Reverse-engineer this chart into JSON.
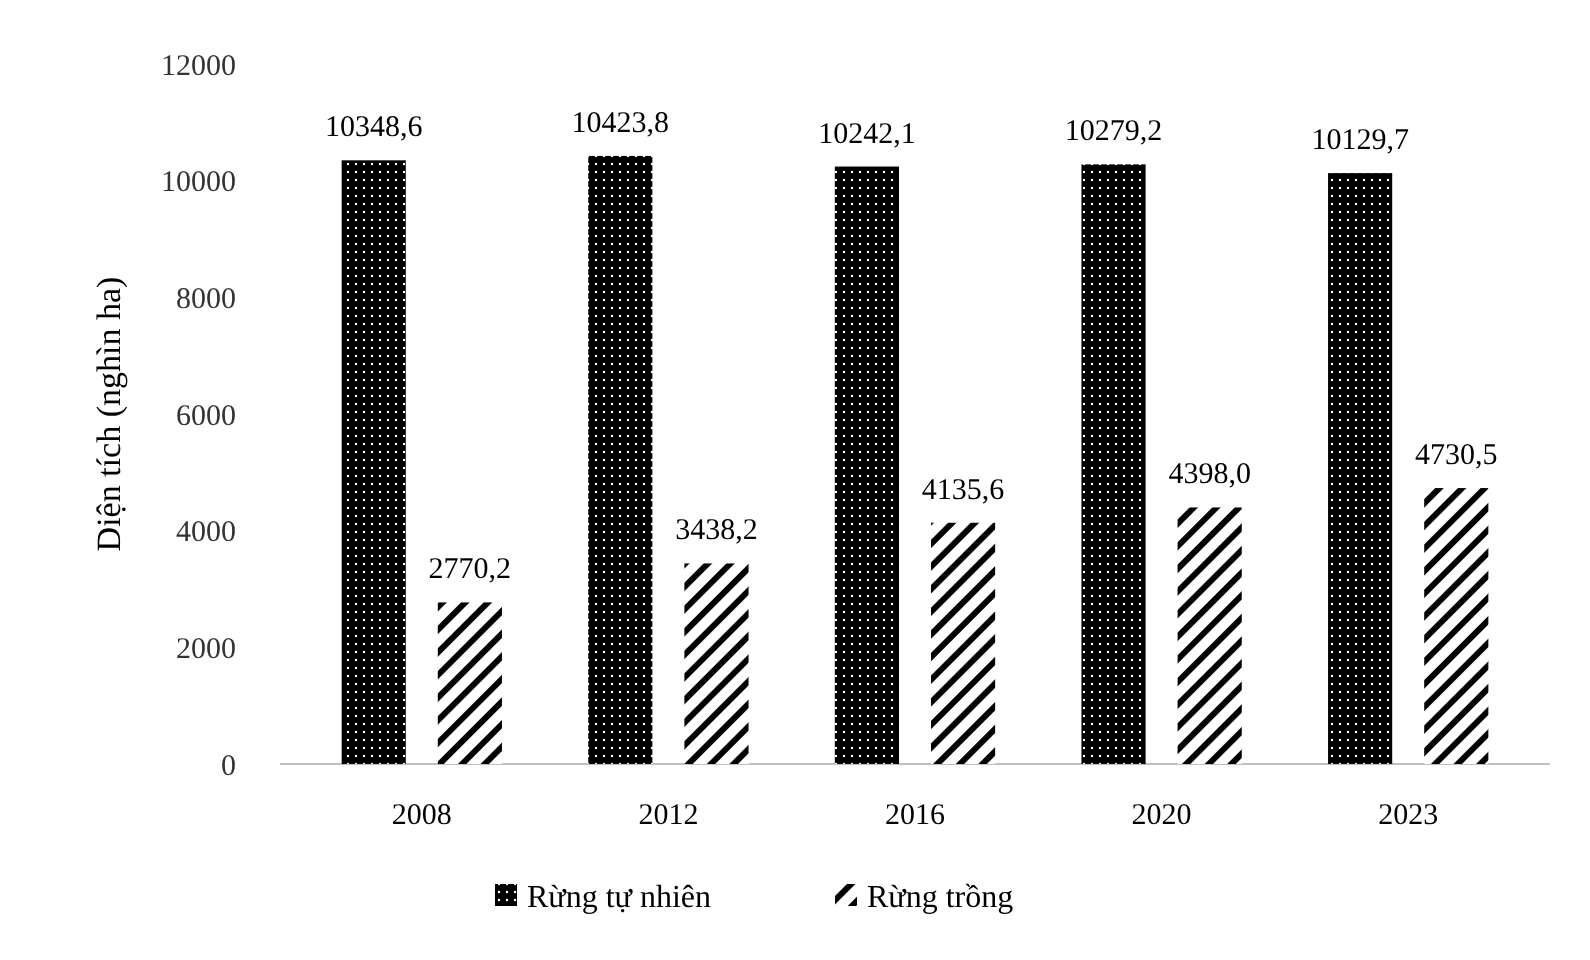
{
  "chart_data": {
    "type": "bar",
    "ylabel": "Diện tích (nghìn ha)",
    "categories": [
      "2008",
      "2012",
      "2016",
      "2020",
      "2023"
    ],
    "series": [
      {
        "name": "Rừng tự  nhiên",
        "color": "#000000",
        "values": [
          10348.6,
          10423.8,
          10242.1,
          10279.2,
          10129.7
        ],
        "value_labels": [
          "10348,6",
          "10423,8",
          "10242,1",
          "10279,2",
          "10129,7"
        ]
      },
      {
        "name": "Rừng trồng",
        "color": "#000000",
        "values": [
          2770.2,
          3438.2,
          4135.6,
          4398.0,
          4730.5
        ],
        "value_labels": [
          "2770,2",
          "3438,2",
          "4135,6",
          "4398,0",
          "4730,5"
        ]
      }
    ],
    "ylim": [
      0,
      12000
    ],
    "yticks": [
      0,
      2000,
      4000,
      6000,
      8000,
      10000,
      12000
    ],
    "grid": false,
    "legend": "bottom"
  }
}
